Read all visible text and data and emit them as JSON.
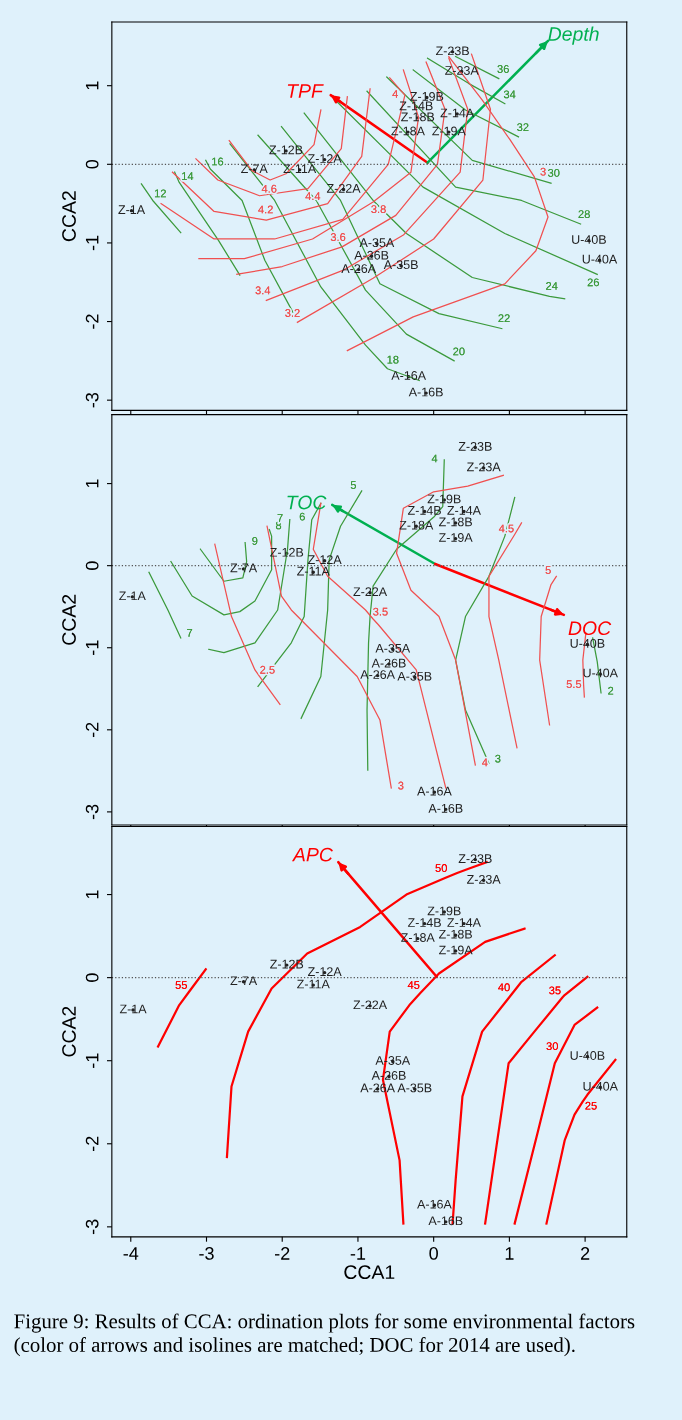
{
  "chart_data": [
    {
      "type": "line",
      "ylabel": "CCA2",
      "xlim": [
        -4.25,
        2.55
      ],
      "ylim": [
        -3.13,
        1.81
      ],
      "xticks": [
        -4,
        -3,
        -2,
        -1,
        0,
        1,
        2
      ],
      "yticks": [
        -3,
        -2,
        -1,
        0,
        1
      ],
      "tick_labels": "y",
      "ref_lines": [
        {
          "axis": "y",
          "value": 0,
          "line_style": "dotted",
          "color": "#555555"
        }
      ],
      "series": [
        {
          "type": "scatter",
          "marker": "circle",
          "color": "#222222",
          "x": [
            0.25,
            0.37,
            -0.09,
            -0.23,
            0.31,
            -0.21,
            -0.34,
            0.2,
            -1.95,
            -1.44,
            -2.37,
            -1.77,
            -1.19,
            -3.99,
            -0.75,
            -0.82,
            -0.99,
            -0.43,
            -0.33,
            -0.1,
            2.05,
            2.19
          ],
          "values": [
            1.43,
            1.18,
            0.85,
            0.73,
            0.64,
            0.59,
            0.41,
            0.41,
            0.17,
            0.06,
            -0.07,
            -0.07,
            -0.32,
            -0.59,
            -1.01,
            -1.17,
            -1.34,
            -1.29,
            -2.7,
            -2.91,
            -0.97,
            -1.22
          ],
          "value_labels": [
            "Z-23B",
            "Z-23A",
            "Z-19B",
            "Z-14B",
            "Z-14A",
            "Z-18B",
            "Z-18A",
            "Z-19A",
            "Z-12B",
            "Z-12A",
            "Z-7A",
            "Z-11A",
            "Z-22A",
            "Z-1A",
            "A-35A",
            "A-26B",
            "A-26A",
            "A-35B",
            "A-16A",
            "A-16B",
            "U-40B",
            "U-40A"
          ]
        },
        {
          "name": "TPF",
          "color": "#ff0000",
          "x": [
            -0.08,
            -1.36
          ],
          "values": [
            0.02,
            0.88
          ]
        },
        {
          "name": "Depth",
          "color": "#00b050",
          "x": [
            -0.08,
            1.51
          ],
          "values": [
            0.02,
            1.57
          ]
        },
        {
          "color": "#3c9a3c",
          "x": [
            -3.86,
            -3.71,
            -3.34
          ],
          "values": [
            -0.25,
            -0.46,
            -0.87
          ]
        },
        {
          "color": "#3c9a3c",
          "x": [
            -3.42,
            -3.36,
            -2.84,
            -2.56
          ],
          "values": [
            -0.1,
            -0.23,
            -0.97,
            -1.41
          ]
        },
        {
          "color": "#3c9a3c",
          "x": [
            -3.01,
            -2.95,
            -2.53,
            -2.23,
            -1.86
          ],
          "values": [
            0.05,
            -0.06,
            -0.46,
            -1.22,
            -1.88
          ]
        },
        {
          "color": "#3c9a3c",
          "x": [
            -2.69,
            -2.1,
            -1.49,
            -0.9,
            -0.61,
            -0.19
          ],
          "values": [
            0.26,
            -0.46,
            -1.56,
            -2.3,
            -2.6,
            -2.75
          ]
        },
        {
          "color": "#3c9a3c",
          "x": [
            -2.32,
            -1.55,
            -0.9,
            -0.36,
            0.27
          ],
          "values": [
            0.37,
            -0.46,
            -1.6,
            -2.16,
            -2.5
          ]
        },
        {
          "color": "#3c9a3c",
          "x": [
            -2.01,
            -1.23,
            -0.71,
            0.07,
            0.9
          ],
          "values": [
            0.48,
            -0.46,
            -1.52,
            -1.9,
            -2.09
          ]
        },
        {
          "color": "#3c9a3c",
          "x": [
            -1.71,
            -0.8,
            -0.36,
            0.51,
            1.53,
            1.73
          ],
          "values": [
            0.65,
            -0.46,
            -0.88,
            -1.44,
            -1.68,
            -1.71
          ]
        },
        {
          "color": "#3c9a3c",
          "x": [
            -1.27,
            -0.14,
            0.94,
            2.16
          ],
          "values": [
            0.79,
            -0.29,
            -0.88,
            -1.4
          ]
        },
        {
          "color": "#3c9a3c",
          "x": [
            -0.88,
            0.29,
            1.16,
            1.94
          ],
          "values": [
            0.93,
            -0.29,
            -0.46,
            -0.76
          ]
        },
        {
          "color": "#3c9a3c",
          "x": [
            -0.62,
            0.51,
            1.55
          ],
          "values": [
            1.11,
            0.05,
            -0.24
          ]
        },
        {
          "color": "#3c9a3c",
          "x": [
            -0.27,
            0.42,
            1.12
          ],
          "values": [
            1.2,
            0.69,
            0.35
          ]
        },
        {
          "color": "#3c9a3c",
          "x": [
            -0.08,
            0.46,
            0.94
          ],
          "values": [
            1.35,
            1.03,
            0.77
          ]
        },
        {
          "color": "#3c9a3c",
          "x": [
            0.29,
            0.86
          ],
          "values": [
            1.37,
            1.09
          ]
        },
        {
          "color": "#f05050",
          "x": [
            -1.49,
            -1.58,
            -1.95,
            -2.16,
            -2.4,
            -2.7
          ],
          "values": [
            0.69,
            0.25,
            -0.12,
            -0.2,
            -0.08,
            0.3
          ]
        },
        {
          "color": "#f05050",
          "x": [
            -1.14,
            -1.22,
            -1.66,
            -2.3,
            -2.85,
            -3.14
          ],
          "values": [
            0.86,
            0.2,
            -0.31,
            -0.4,
            -0.2,
            0.07
          ]
        },
        {
          "color": "#f05050",
          "x": [
            -0.84,
            -0.95,
            -1.4,
            -2.21,
            -2.9,
            -3.45
          ],
          "values": [
            0.96,
            0.1,
            -0.5,
            -0.71,
            -0.6,
            -0.1
          ]
        },
        {
          "color": "#f05050",
          "x": [
            -0.58,
            -0.38,
            -0.6,
            -1.2,
            -2.1,
            -2.9,
            -3.6
          ],
          "values": [
            1.1,
            0.88,
            0.0,
            -0.7,
            -0.95,
            -0.95,
            -0.5
          ]
        },
        {
          "color": "#f05050",
          "x": [
            -0.4,
            -0.2,
            -0.3,
            -0.8,
            -1.6,
            -2.5,
            -3.1
          ],
          "values": [
            1.2,
            0.6,
            -0.1,
            -0.48,
            -0.95,
            -1.2,
            -1.2
          ]
        },
        {
          "color": "#f05050",
          "x": [
            -0.1,
            0.15,
            0.05,
            -0.5,
            -1.21,
            -2.0,
            -2.6
          ],
          "values": [
            1.3,
            0.7,
            0.0,
            -0.65,
            -1.05,
            -1.3,
            -1.4
          ]
        },
        {
          "color": "#f05050",
          "x": [
            0.2,
            0.45,
            0.35,
            -0.4,
            -1.2,
            -2.21
          ],
          "values": [
            1.35,
            0.7,
            -0.1,
            -0.9,
            -1.35,
            -1.73
          ]
        },
        {
          "color": "#f05050",
          "x": [
            0.5,
            0.75,
            0.65,
            0.0,
            -0.8,
            -1.8
          ],
          "values": [
            1.4,
            0.7,
            -0.2,
            -0.95,
            -1.45,
            -2.01
          ]
        },
        {
          "color": "#f05050",
          "x": [
            0.2,
            0.64,
            1.01,
            1.33,
            1.51,
            1.35,
            0.94,
            -0.27,
            -1.14
          ],
          "values": [
            1.37,
            0.82,
            0.31,
            -0.16,
            -0.67,
            -1.1,
            -1.52,
            -1.94,
            -2.37
          ]
        }
      ],
      "annotations": [
        {
          "text": "12",
          "x": -3.71,
          "y": -0.46
        },
        {
          "text": "14",
          "x": -3.36,
          "y": -0.23
        },
        {
          "text": "16",
          "x": -2.95,
          "y": -0.06
        },
        {
          "text": "18",
          "x": -0.61,
          "y": -2.6
        },
        {
          "text": "20",
          "x": 0.27,
          "y": -2.5
        },
        {
          "text": "22",
          "x": 0.9,
          "y": -2.09
        },
        {
          "text": "24",
          "x": 1.53,
          "y": -1.68
        },
        {
          "text": "26",
          "x": 2.16,
          "y": -1.4
        },
        {
          "text": "28",
          "x": 1.94,
          "y": -0.76
        },
        {
          "text": "30",
          "x": 1.55,
          "y": -0.24
        },
        {
          "text": "32",
          "x": 1.12,
          "y": 0.35
        },
        {
          "text": "34",
          "x": 0.94,
          "y": 0.77
        },
        {
          "text": "36",
          "x": 0.86,
          "y": 1.09
        },
        {
          "text": "4.6",
          "x": -2.16,
          "y": -0.2
        },
        {
          "text": "4.4",
          "x": -1.66,
          "y": -0.31
        },
        {
          "text": "4.2",
          "x": -2.21,
          "y": -0.71
        },
        {
          "text": "4",
          "x": -0.38,
          "y": 0.88
        },
        {
          "text": "3.8",
          "x": -0.8,
          "y": -0.48
        },
        {
          "text": "3.6",
          "x": -1.21,
          "y": -1.05
        },
        {
          "text": "3.4",
          "x": -2.21,
          "y": -1.73
        },
        {
          "text": "3.2",
          "x": -1.8,
          "y": -2.01
        },
        {
          "text": "3",
          "x": 1.33,
          "y": -0.16
        }
      ]
    },
    {
      "type": "line",
      "ylabel": "CCA2",
      "xlim": [
        -4.25,
        2.55
      ],
      "ylim": [
        -3.16,
        1.84
      ],
      "xticks": [
        -4,
        -3,
        -2,
        -1,
        0,
        1,
        2
      ],
      "yticks": [
        -3,
        -2,
        -1,
        0,
        1
      ],
      "tick_labels": "y",
      "ref_lines": [
        {
          "axis": "y",
          "value": 0,
          "line_style": "dotted",
          "color": "#555555"
        }
      ],
      "series": [
        {
          "type": "scatter",
          "marker": "circle",
          "color": "#222222",
          "x": [
            0.55,
            0.66,
            0.14,
            -0.12,
            0.4,
            0.29,
            -0.23,
            0.29,
            -1.94,
            -1.44,
            -2.51,
            -1.59,
            -0.84,
            -3.98,
            -0.54,
            -0.59,
            -0.74,
            -0.25,
            0.01,
            0.16,
            2.03,
            2.2
          ],
          "values": [
            1.44,
            1.19,
            0.8,
            0.66,
            0.66,
            0.52,
            0.48,
            0.33,
            0.15,
            0.06,
            -0.04,
            -0.08,
            -0.33,
            -0.38,
            -1.02,
            -1.2,
            -1.34,
            -1.36,
            -2.76,
            -2.97,
            -0.96,
            -1.32
          ],
          "value_labels": [
            "Z-23B",
            "Z-23A",
            "Z-19B",
            "Z-14B",
            "Z-14A",
            "Z-18B",
            "Z-18A",
            "Z-19A",
            "Z-12B",
            "Z-12A",
            "Z-7A",
            "Z-11A",
            "Z-22A",
            "Z-1A",
            "A-35A",
            "A-26B",
            "A-26A",
            "A-35B",
            "A-16A",
            "A-16B",
            "U-40B",
            "U-40A"
          ]
        },
        {
          "name": "TOC",
          "color": "#00b050",
          "x": [
            0.02,
            -1.34
          ],
          "values": [
            0.02,
            0.74
          ]
        },
        {
          "name": "DOC",
          "color": "#ff0000",
          "x": [
            0.02,
            1.72
          ],
          "values": [
            0.02,
            -0.6
          ]
        },
        {
          "color": "#3c9a3c",
          "x": [
            -3.08,
            -2.77,
            -2.52,
            -2.47,
            -2.49
          ],
          "values": [
            0.2,
            -0.19,
            -0.15,
            0.05,
            0.28
          ]
        },
        {
          "color": "#3c9a3c",
          "x": [
            -3.47,
            -3.19,
            -2.77,
            -2.56,
            -2.36,
            -2.14,
            -2.14,
            -2.17
          ],
          "values": [
            0.05,
            -0.37,
            -0.6,
            -0.56,
            -0.43,
            -0.05,
            0.36,
            0.44
          ]
        },
        {
          "color": "#3c9a3c",
          "x": [
            -3.76,
            -3.51,
            -3.34
          ],
          "values": [
            -0.08,
            -0.54,
            -0.88
          ]
        },
        {
          "color": "#3c9a3c",
          "x": [
            -2.97,
            -2.77,
            -2.36,
            -2.06,
            -1.93,
            -1.9
          ],
          "values": [
            -1.02,
            -1.06,
            -0.94,
            -0.54,
            0.2,
            0.56
          ]
        },
        {
          "color": "#3c9a3c",
          "x": [
            -1.49,
            -1.61,
            -1.66,
            -1.71,
            -1.88,
            -2.32
          ],
          "values": [
            0.76,
            0.56,
            0.07,
            -0.62,
            -0.94,
            -1.47
          ]
        },
        {
          "color": "#3c9a3c",
          "x": [
            -0.95,
            -1.23,
            -1.38,
            -1.4,
            -1.49,
            -1.75
          ],
          "values": [
            0.91,
            0.48,
            0.07,
            -0.54,
            -1.35,
            -1.86
          ]
        },
        {
          "color": "#3c9a3c",
          "x": [
            0.14,
            0.12,
            0.01,
            -0.49,
            -0.8,
            -0.84,
            -0.86,
            -0.88,
            -0.87
          ],
          "values": [
            1.29,
            0.72,
            0.6,
            0.2,
            -0.25,
            -0.62,
            -0.94,
            -1.76,
            -2.49
          ]
        },
        {
          "color": "#3c9a3c",
          "x": [
            1.07,
            0.94,
            0.73,
            0.42,
            0.29,
            0.42,
            0.73
          ],
          "values": [
            0.83,
            0.36,
            -0.13,
            -0.62,
            -1.15,
            -1.76,
            -2.41
          ]
        },
        {
          "color": "#3c9a3c",
          "x": [
            2.1,
            2.16,
            2.21
          ],
          "values": [
            -0.88,
            -1.17,
            -1.55
          ]
        },
        {
          "color": "#f05050",
          "x": [
            -2.89,
            -2.67,
            -2.36,
            -2.3,
            -2.03
          ],
          "values": [
            0.26,
            -0.62,
            -1.27,
            -1.35,
            -1.69
          ]
        },
        {
          "color": "#f05050",
          "x": [
            -2.2,
            -2.01,
            -1.88,
            -1.01,
            -0.71,
            -0.56
          ],
          "values": [
            0.48,
            -0.37,
            -0.54,
            -1.35,
            -1.88,
            -2.71
          ]
        },
        {
          "color": "#f05050",
          "x": [
            -1.49,
            -1.59,
            -1.4,
            -0.9,
            -0.8,
            -0.73,
            -0.23,
            0.16
          ],
          "values": [
            0.76,
            0.2,
            -0.13,
            -0.54,
            -0.65,
            -0.72,
            -1.27,
            -2.71
          ]
        },
        {
          "color": "#f05050",
          "x": [
            0.92,
            0.45,
            0.0,
            -0.4,
            -0.49,
            -0.3,
            0.07,
            0.29,
            0.55
          ],
          "values": [
            1.1,
            0.97,
            0.9,
            0.7,
            0.15,
            -0.3,
            -0.62,
            -1.15,
            -2.43
          ]
        },
        {
          "color": "#f05050",
          "x": [
            1.16,
            1.07,
            0.73,
            0.73,
            0.86,
            1.1
          ],
          "values": [
            0.52,
            0.38,
            -0.13,
            -0.62,
            -1.15,
            -2.22
          ]
        },
        {
          "color": "#f05050",
          "x": [
            1.62,
            1.55,
            1.42,
            1.4,
            1.53
          ],
          "values": [
            -0.13,
            -0.23,
            -0.62,
            -1.15,
            -1.94
          ]
        },
        {
          "color": "#f05050",
          "x": [
            2.01,
            1.97,
            1.98,
            1.99
          ],
          "values": [
            -0.82,
            -1.15,
            -1.45,
            -1.6
          ]
        }
      ],
      "annotations": [
        {
          "text": "9",
          "x": -2.49,
          "y": 0.28
        },
        {
          "text": "8",
          "x": -2.17,
          "y": 0.44
        },
        {
          "text": "7",
          "x": -3.34,
          "y": -0.88
        },
        {
          "text": "7",
          "x": -1.9,
          "y": 0.56
        },
        {
          "text": "6",
          "x": -1.61,
          "y": 0.56
        },
        {
          "text": "5",
          "x": -0.95,
          "y": 0.91
        },
        {
          "text": "4",
          "x": 0.14,
          "y": 1.29
        },
        {
          "text": "3",
          "x": 0.73,
          "y": -2.41
        },
        {
          "text": "2",
          "x": 2.21,
          "y": -1.55
        },
        {
          "text": "2.5",
          "x": -2.3,
          "y": -1.35
        },
        {
          "text": "3",
          "x": -0.56,
          "y": -2.71
        },
        {
          "text": "3.5",
          "x": -0.8,
          "y": -0.65
        },
        {
          "text": "4",
          "x": 0.55,
          "y": -2.43
        },
        {
          "text": "4.5",
          "x": 1.07,
          "y": 0.38
        },
        {
          "text": "5",
          "x": 1.62,
          "y": -0.13
        },
        {
          "text": "5.5",
          "x": 1.98,
          "y": -1.45
        }
      ]
    },
    {
      "type": "line",
      "xlabel": "CCA1",
      "ylabel": "CCA2",
      "xlim": [
        -4.25,
        2.55
      ],
      "ylim": [
        -3.12,
        1.82
      ],
      "xticks": [
        -4,
        -3,
        -2,
        -1,
        0,
        1,
        2
      ],
      "yticks": [
        -3,
        -2,
        -1,
        0,
        1
      ],
      "ref_lines": [
        {
          "axis": "y",
          "value": 0,
          "line_style": "dotted",
          "color": "#555555"
        }
      ],
      "series": [
        {
          "type": "scatter",
          "marker": "circle",
          "color": "#222222",
          "x": [
            0.55,
            0.66,
            0.14,
            -0.12,
            0.4,
            0.29,
            -0.21,
            0.29,
            -1.94,
            -1.44,
            -2.51,
            -1.59,
            -0.84,
            -3.97,
            -0.54,
            -0.59,
            -0.74,
            -0.25,
            0.01,
            0.16,
            2.03,
            2.2
          ],
          "values": [
            1.42,
            1.17,
            0.79,
            0.65,
            0.65,
            0.51,
            0.47,
            0.32,
            0.15,
            0.06,
            -0.05,
            -0.09,
            -0.34,
            -0.39,
            -1.01,
            -1.19,
            -1.34,
            -1.34,
            -2.74,
            -2.94,
            -0.95,
            -1.32
          ],
          "value_labels": [
            "Z-23B",
            "Z-23A",
            "Z-19B",
            "Z-14B",
            "Z-14A",
            "Z-18B",
            "Z-18A",
            "Z-19A",
            "Z-12B",
            "Z-12A",
            "Z-7A",
            "Z-11A",
            "Z-22A",
            "Z-1A",
            "A-35A",
            "A-26B",
            "A-26A",
            "A-35B",
            "A-16A",
            "A-16B",
            "U-40B",
            "U-40A"
          ]
        },
        {
          "name": "APC",
          "color": "#ff0000",
          "x": [
            0.04,
            -1.26
          ],
          "values": [
            0.01,
            1.39
          ]
        },
        {
          "color": "#ff0000",
          "x": [
            -3.01,
            -3.23,
            -3.36,
            -3.64
          ],
          "values": [
            0.1,
            -0.17,
            -0.33,
            -0.83
          ]
        },
        {
          "color": "#ff0000",
          "x": [
            0.7,
            0.46,
            0.31,
            0.15,
            -0.36,
            -0.97,
            -1.67,
            -2.14,
            -2.45,
            -2.67,
            -2.73
          ],
          "values": [
            1.39,
            1.31,
            1.26,
            1.2,
            1.0,
            0.61,
            0.29,
            -0.13,
            -0.65,
            -1.31,
            -2.16
          ]
        },
        {
          "color": "#ff0000",
          "x": [
            1.2,
            0.68,
            0.07,
            -0.17,
            -0.32,
            -0.58,
            -0.67,
            -0.45,
            -0.4
          ],
          "values": [
            0.59,
            0.43,
            0.05,
            -0.18,
            -0.33,
            -0.65,
            -1.23,
            -2.2,
            -2.96
          ]
        },
        {
          "color": "#ff0000",
          "x": [
            1.6,
            1.16,
            1.03,
            0.64,
            0.38,
            0.29,
            0.25
          ],
          "values": [
            0.27,
            -0.05,
            -0.2,
            -0.65,
            -1.43,
            -2.44,
            -2.96
          ]
        },
        {
          "color": "#ff0000",
          "x": [
            2.03,
            1.73,
            1.7,
            1.33,
            0.99,
            0.68
          ],
          "values": [
            0.01,
            -0.21,
            -0.24,
            -0.65,
            -1.03,
            -2.96
          ]
        },
        {
          "color": "#ff0000",
          "x": [
            2.16,
            1.86,
            1.68,
            1.6,
            1.38,
            1.07
          ],
          "values": [
            -0.36,
            -0.57,
            -0.89,
            -1.03,
            -1.84,
            -2.96
          ]
        },
        {
          "color": "#ff0000",
          "x": [
            2.4,
            2.03,
            1.97,
            1.86,
            1.73,
            1.49
          ],
          "values": [
            -0.99,
            -1.41,
            -1.49,
            -1.65,
            -1.96,
            -2.96
          ]
        }
      ],
      "annotations": [
        {
          "text": "55",
          "x": -3.23,
          "y": -0.17
        },
        {
          "text": "50",
          "x": 0.15,
          "y": 1.2
        },
        {
          "text": "45",
          "x": -0.17,
          "y": -0.18
        },
        {
          "text": "40",
          "x": 1.03,
          "y": -0.2
        },
        {
          "text": "35",
          "x": 1.7,
          "y": -0.24
        },
        {
          "text": "30",
          "x": 1.68,
          "y": -0.89
        },
        {
          "text": "25",
          "x": 1.97,
          "y": -1.49
        },
        "Figure 9: Results of CCA: ordination plots for some environmental factors (color of arrows and isolines are matched; DOC for 2014 are used)."
      ]
    }
  ]
}
